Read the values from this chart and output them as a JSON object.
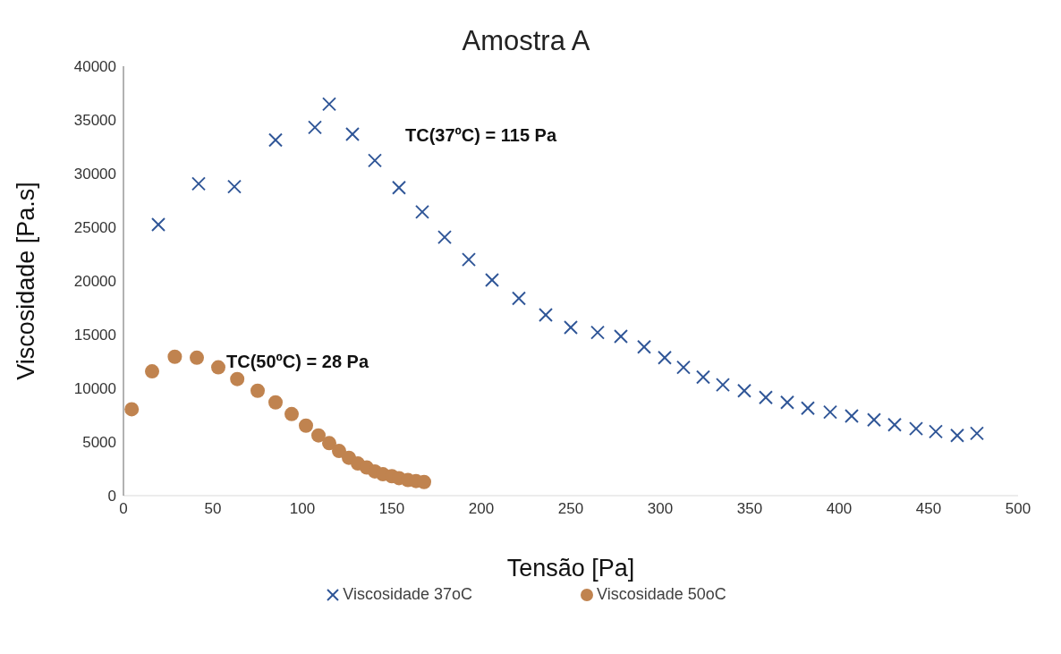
{
  "chart_data": {
    "type": "scatter",
    "title": "Amostra A",
    "xlabel": "Tensão [Pa]",
    "ylabel": "Viscosidade [Pa.s]",
    "xlim": [
      0,
      500
    ],
    "xticks": [
      0,
      50,
      100,
      150,
      200,
      250,
      300,
      350,
      400,
      450,
      500
    ],
    "ylim": [
      0,
      40000
    ],
    "yticks": [
      0,
      5000,
      10000,
      15000,
      20000,
      25000,
      30000,
      35000,
      40000
    ],
    "grid": false,
    "legend": "bottom",
    "annotations": [
      "TC(37ºC) = 115 Pa",
      "TC(50ºC) = 28 Pa"
    ],
    "series": [
      {
        "name": "Viscosidade 37oC",
        "color": "#2f5597",
        "marker": "cross",
        "x": [
          19.5,
          42,
          62,
          85,
          107,
          115,
          128,
          140.5,
          154,
          167,
          179.5,
          193,
          206,
          221,
          236,
          250,
          265,
          278,
          291,
          302.5,
          313,
          324,
          335,
          347,
          359,
          371,
          382.5,
          395,
          407,
          419.5,
          431,
          443,
          454,
          466,
          477
        ],
        "values": [
          25250,
          29050,
          28780,
          33120,
          34300,
          36470,
          33660,
          31220,
          28690,
          26430,
          24070,
          21990,
          20090,
          18370,
          16830,
          15660,
          15200,
          14840,
          13850,
          12850,
          11950,
          11040,
          10320,
          9770,
          9140,
          8690,
          8140,
          7780,
          7420,
          7060,
          6610,
          6240,
          5970,
          5610,
          5800
        ]
      },
      {
        "name": "Viscosidade 50oC",
        "color": "#c0834f",
        "marker": "circle",
        "x": [
          4.6,
          16,
          28.7,
          41,
          53,
          63.6,
          75,
          85,
          94,
          102,
          109,
          115,
          120.5,
          126,
          131,
          136,
          140.5,
          145,
          150,
          154,
          159,
          163.5,
          168
        ],
        "values": [
          8050,
          11580,
          12940,
          12850,
          11950,
          10860,
          9770,
          8690,
          7600,
          6520,
          5610,
          4890,
          4160,
          3530,
          2990,
          2620,
          2260,
          1990,
          1810,
          1630,
          1450,
          1360,
          1270
        ]
      }
    ]
  }
}
